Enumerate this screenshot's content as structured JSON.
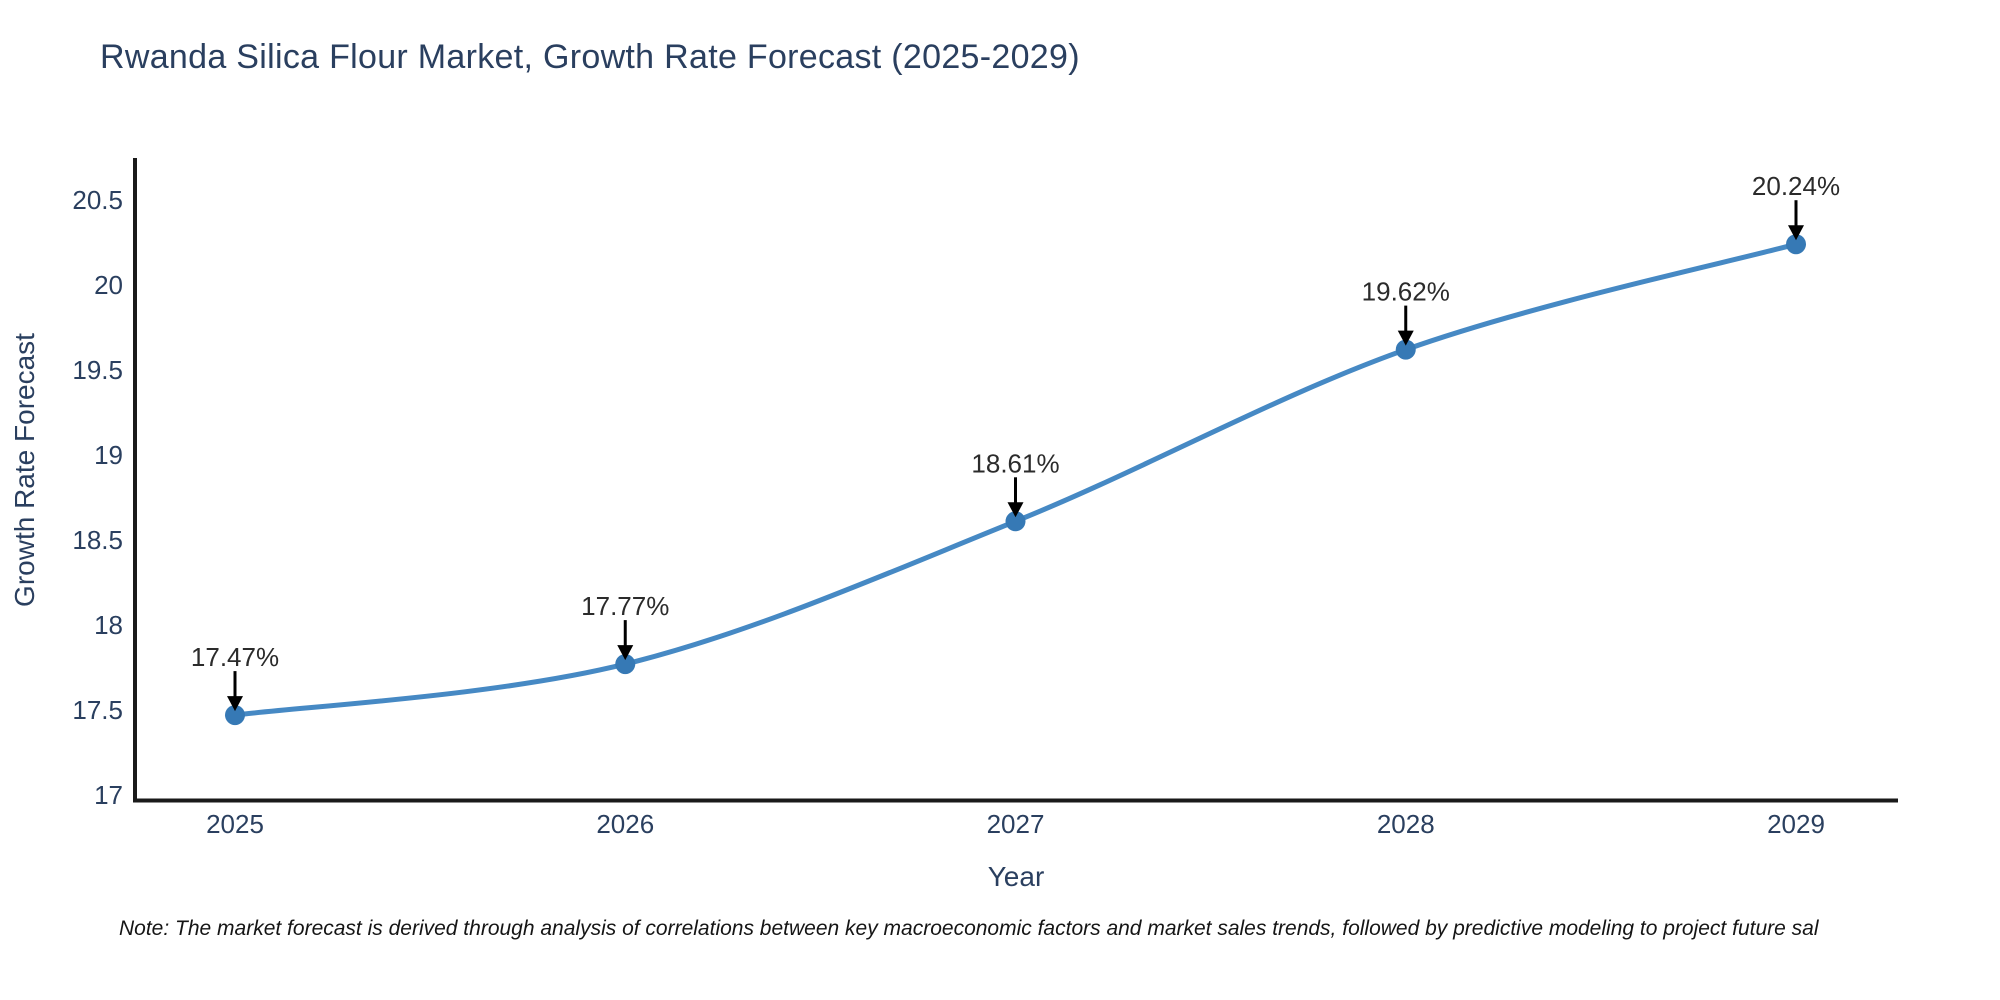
{
  "chart": {
    "title": "Rwanda Silica Flour Market, Growth Rate Forecast (2025-2029)",
    "xlabel": "Year",
    "ylabel": "Growth Rate Forecast",
    "note": "Note: The market forecast is derived through analysis of correlations between key macroeconomic factors and market sales trends, followed by predictive modeling to project future sal"
  },
  "chart_data": {
    "type": "line",
    "line_shape": "spline",
    "title": "Rwanda Silica Flour Market, Growth Rate Forecast (2025-2029)",
    "xlabel": "Year",
    "ylabel": "Growth Rate Forecast",
    "x": [
      2025,
      2026,
      2027,
      2028,
      2029
    ],
    "series": [
      {
        "name": "Growth Rate Forecast",
        "values": [
          17.47,
          17.77,
          18.61,
          19.62,
          20.24
        ]
      }
    ],
    "point_labels": [
      "17.47%",
      "17.77%",
      "18.61%",
      "19.62%",
      "20.24%"
    ],
    "xticks": [
      "2025",
      "2026",
      "2027",
      "2028",
      "2029"
    ],
    "yticks": [
      17,
      17.5,
      18,
      18.5,
      19,
      19.5,
      20,
      20.5
    ],
    "ylim": [
      17,
      20.75
    ],
    "grid": false,
    "legend": "none",
    "colors": {
      "line": "#4689c4",
      "marker": "#3679b5",
      "axis": "#1a1a1a",
      "tick_text": "#2a3f5f",
      "annotation_text": "#2b2b2b",
      "arrow": "#000000",
      "title_text": "#2a3f5f",
      "background": "#ffffff"
    }
  }
}
